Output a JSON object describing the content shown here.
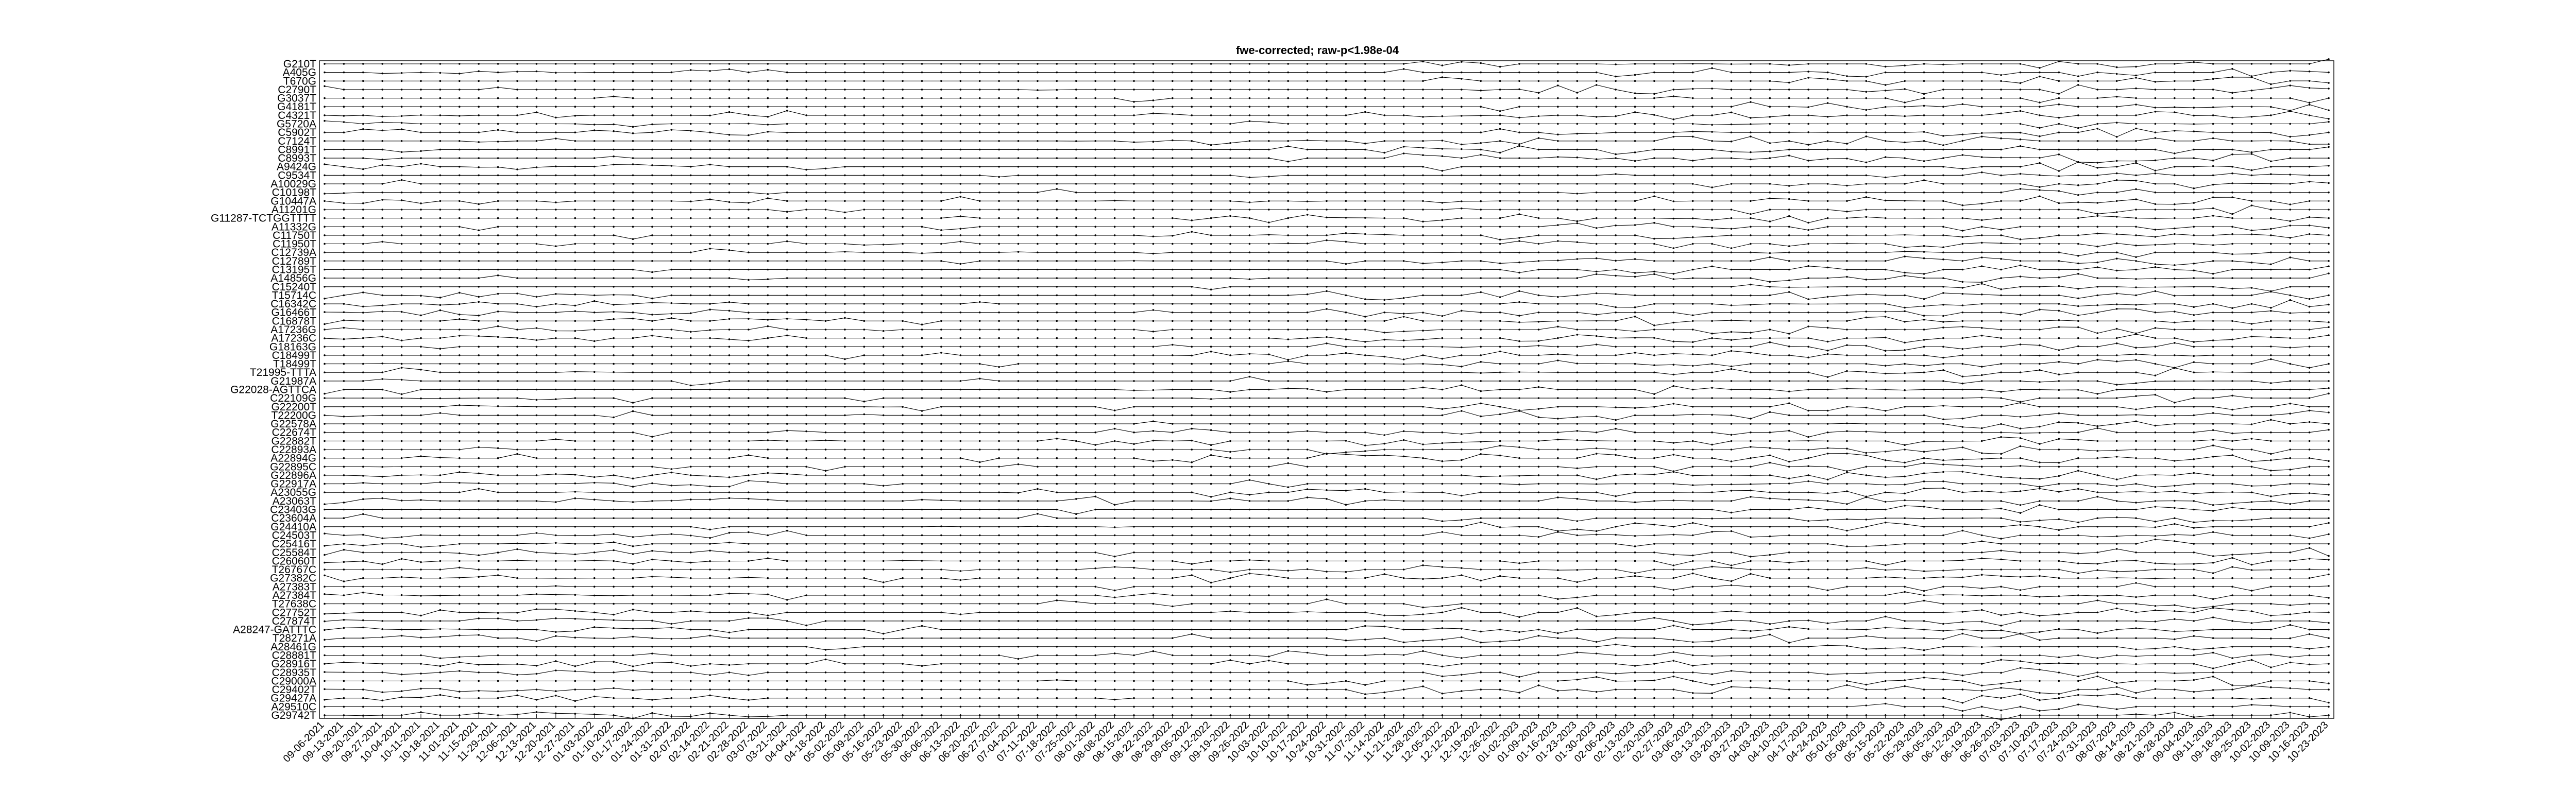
{
  "chart_data": {
    "type": "line",
    "title": "fwe-corrected; raw-p<1.98e-04",
    "xlabel": "",
    "ylabel": "",
    "grid": false,
    "legend": "none",
    "y_categories": [
      "G210T",
      "A405G",
      "T670G",
      "C2790T",
      "G3037T",
      "G4181T",
      "C4321T",
      "G5720A",
      "C5902T",
      "C7124T",
      "C8991T",
      "C8993T",
      "A9424G",
      "C9534T",
      "A10029G",
      "C10198T",
      "G10447A",
      "A11201G",
      "G11287-TCTGGTTTT",
      "A11332G",
      "C11750T",
      "C11950T",
      "C12739A",
      "C12789T",
      "C13195T",
      "A14856G",
      "C15240T",
      "T15714C",
      "C16342C",
      "G16466T",
      "C16878T",
      "A17236G",
      "A17236C",
      "G18163G",
      "C18499T",
      "T18499T",
      "T21995-TTTA",
      "G21987A",
      "G22028-AGTTCA",
      "C22109G",
      "G22200T",
      "T22200G",
      "G22578A",
      "C22674T",
      "G22882T",
      "C22893A",
      "A22894G",
      "G22895C",
      "G22896A",
      "G22917A",
      "A23055G",
      "A23063T",
      "C23403G",
      "C23604A",
      "G24410A",
      "C24503T",
      "C25416T",
      "C25584T",
      "C26060T",
      "T26767C",
      "G27382C",
      "A27383T",
      "A27384T",
      "T27638C",
      "C27752T",
      "C27874T",
      "A28247-GATTTC",
      "T28271A",
      "A28461G",
      "C28881T",
      "G28916T",
      "C28935T",
      "C29000A",
      "C29402T",
      "G29427A",
      "A29510C",
      "G29742T"
    ],
    "dates": [
      "09-06-2021",
      "09-13-2021",
      "09-20-2021",
      "09-27-2021",
      "10-04-2021",
      "10-11-2021",
      "10-18-2021",
      "11-01-2021",
      "11-15-2021",
      "11-29-2021",
      "12-06-2021",
      "12-13-2021",
      "12-20-2021",
      "12-27-2021",
      "01-03-2022",
      "01-10-2022",
      "01-17-2022",
      "01-24-2022",
      "01-31-2022",
      "02-07-2022",
      "02-14-2022",
      "02-21-2022",
      "02-28-2022",
      "03-07-2022",
      "03-21-2022",
      "04-04-2022",
      "04-18-2022",
      "05-02-2022",
      "05-09-2022",
      "05-16-2022",
      "05-23-2022",
      "05-30-2022",
      "06-06-2022",
      "06-13-2022",
      "06-20-2022",
      "06-27-2022",
      "07-04-2022",
      "07-11-2022",
      "07-18-2022",
      "07-25-2022",
      "08-01-2022",
      "08-08-2022",
      "08-15-2022",
      "08-22-2022",
      "08-29-2022",
      "09-05-2022",
      "09-12-2022",
      "09-19-2022",
      "09-26-2022",
      "10-03-2022",
      "10-10-2022",
      "10-17-2022",
      "10-24-2022",
      "10-31-2022",
      "11-07-2022",
      "11-14-2022",
      "11-21-2022",
      "11-28-2022",
      "12-05-2022",
      "12-12-2022",
      "12-19-2022",
      "12-26-2022",
      "01-02-2023",
      "01-09-2023",
      "01-16-2023",
      "01-23-2023",
      "01-30-2023",
      "02-06-2023",
      "02-13-2023",
      "02-20-2023",
      "02-27-2023",
      "03-06-2023",
      "03-13-2023",
      "03-20-2023",
      "03-27-2023",
      "04-03-2023",
      "04-10-2023",
      "04-17-2023",
      "04-24-2023",
      "05-01-2023",
      "05-08-2023",
      "05-15-2023",
      "05-22-2023",
      "05-29-2023",
      "06-05-2023",
      "06-12-2023",
      "06-19-2023",
      "06-26-2023",
      "07-03-2023",
      "07-10-2023",
      "07-17-2023",
      "07-24-2023",
      "07-31-2023",
      "08-07-2023",
      "08-14-2023",
      "08-21-2023",
      "08-28-2023",
      "09-04-2023",
      "09-11-2023",
      "09-18-2023",
      "09-25-2023",
      "10-02-2023",
      "10-09-2023",
      "10-16-2023",
      "10-23-2023"
    ],
    "colors": {
      "line": "#000000",
      "marker": "#000000",
      "frame": "#000000"
    }
  }
}
